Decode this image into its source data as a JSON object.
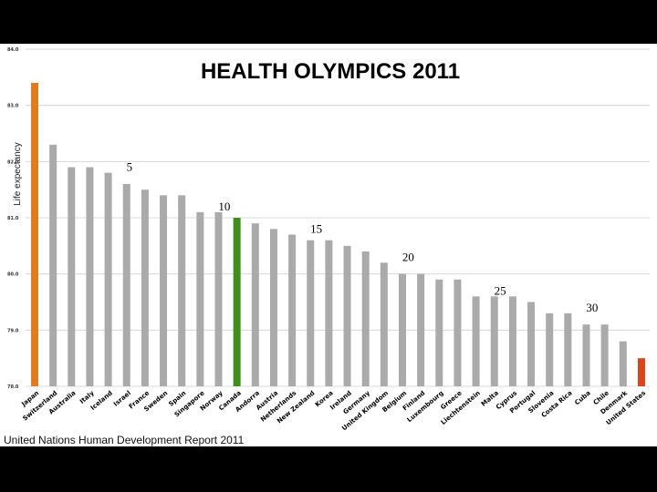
{
  "chart_data": {
    "type": "bar",
    "title": "HEALTH OLYMPICS 2011",
    "ylabel": "Life expectancy",
    "source": "United Nations Human Development Report 2011",
    "ylim": [
      78.0,
      84.0
    ],
    "yticks": [
      "84.0",
      "83.0",
      "82.0",
      "81.0",
      "80.0",
      "79.0",
      "78.0"
    ],
    "grid": true,
    "categories": [
      "Japan",
      "Switzerland",
      "Australia",
      "Italy",
      "Iceland",
      "Israel",
      "France",
      "Sweden",
      "Spain",
      "Singapore",
      "Norway",
      "Canada",
      "Andorra",
      "Austria",
      "Netherlands",
      "New Zealand",
      "Korea",
      "Ireland",
      "Germany",
      "United Kingdom",
      "Belgium",
      "Finland",
      "Luxembourg",
      "Greece",
      "Liechtenstein",
      "Malta",
      "Cyprus",
      "Portugal",
      "Slovenia",
      "Costa Rica",
      "Cuba",
      "Chile",
      "Denmark",
      "United States"
    ],
    "values": [
      83.4,
      82.3,
      81.9,
      81.9,
      81.8,
      81.6,
      81.5,
      81.4,
      81.4,
      81.1,
      81.1,
      81.0,
      80.9,
      80.8,
      80.7,
      80.6,
      80.6,
      80.5,
      80.4,
      80.2,
      80.0,
      80.0,
      79.9,
      79.9,
      79.6,
      79.6,
      79.6,
      79.5,
      79.3,
      79.3,
      79.1,
      79.1,
      78.8,
      78.5
    ],
    "bar_colors": [
      "#e07b1f",
      "#aaaaaa",
      "#aaaaaa",
      "#aaaaaa",
      "#aaaaaa",
      "#aaaaaa",
      "#aaaaaa",
      "#aaaaaa",
      "#aaaaaa",
      "#aaaaaa",
      "#aaaaaa",
      "#3f8f1a",
      "#aaaaaa",
      "#aaaaaa",
      "#aaaaaa",
      "#aaaaaa",
      "#aaaaaa",
      "#aaaaaa",
      "#aaaaaa",
      "#aaaaaa",
      "#aaaaaa",
      "#aaaaaa",
      "#aaaaaa",
      "#aaaaaa",
      "#aaaaaa",
      "#aaaaaa",
      "#aaaaaa",
      "#aaaaaa",
      "#aaaaaa",
      "#aaaaaa",
      "#aaaaaa",
      "#aaaaaa",
      "#aaaaaa",
      "#d9451b"
    ],
    "rank_annotations": [
      {
        "label": "5",
        "index": 4
      },
      {
        "label": "10",
        "index": 9
      },
      {
        "label": "15",
        "index": 14
      },
      {
        "label": "20",
        "index": 19
      },
      {
        "label": "25",
        "index": 24
      },
      {
        "label": "30",
        "index": 29
      }
    ]
  }
}
